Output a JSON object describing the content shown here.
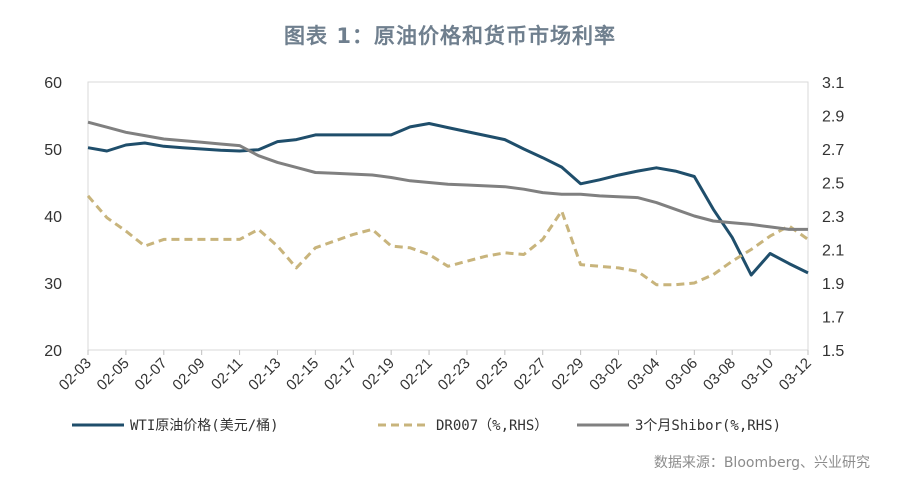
{
  "title": "图表 1：原油价格和货币市场利率",
  "source": "数据来源：Bloomberg、兴业研究",
  "chart_data": {
    "type": "line",
    "x": [
      "02-03",
      "02-04",
      "02-05",
      "02-06",
      "02-07",
      "02-08",
      "02-09",
      "02-10",
      "02-11",
      "02-12",
      "02-13",
      "02-14",
      "02-15",
      "02-16",
      "02-17",
      "02-18",
      "02-19",
      "02-20",
      "02-21",
      "02-22",
      "02-23",
      "02-24",
      "02-25",
      "02-26",
      "02-27",
      "02-28",
      "02-29",
      "03-01",
      "03-02",
      "03-03",
      "03-04",
      "03-05",
      "03-06",
      "03-07",
      "03-08",
      "03-09",
      "03-10",
      "03-11",
      "03-12"
    ],
    "x_tick_labels": [
      "02-03",
      "02-05",
      "02-07",
      "02-09",
      "02-11",
      "02-13",
      "02-15",
      "02-17",
      "02-19",
      "02-21",
      "02-23",
      "02-25",
      "02-27",
      "02-29",
      "03-02",
      "03-04",
      "03-06",
      "03-08",
      "03-10",
      "03-12"
    ],
    "y_left": {
      "ylim": [
        20,
        60
      ],
      "ticks": [
        "20",
        "30",
        "40",
        "50",
        "60"
      ]
    },
    "y_right": {
      "ylim": [
        1.5,
        3.1
      ],
      "ticks": [
        "1.5",
        "1.7",
        "1.9",
        "2.1",
        "2.3",
        "2.5",
        "2.7",
        "2.9",
        "3.1"
      ]
    },
    "series": [
      {
        "name": "WTI原油价格(美元/桶)",
        "axis": "left",
        "color": "#1f4e6b",
        "dash": false,
        "values": [
          50.2,
          49.7,
          50.6,
          50.9,
          50.4,
          50.2,
          50.0,
          49.8,
          49.7,
          49.9,
          51.1,
          51.4,
          52.1,
          52.1,
          52.1,
          52.1,
          52.1,
          53.3,
          53.8,
          53.2,
          52.6,
          52.0,
          51.4,
          50.0,
          48.7,
          47.3,
          44.8,
          45.4,
          46.1,
          46.7,
          47.2,
          46.7,
          45.9,
          41.0,
          36.8,
          31.2,
          34.4,
          32.9,
          31.5
        ]
      },
      {
        "name": "DR007（%,RHS）",
        "axis": "right",
        "color": "#c8b47c",
        "dash": true,
        "values": [
          2.42,
          2.29,
          2.21,
          2.12,
          2.16,
          2.16,
          2.16,
          2.16,
          2.16,
          2.22,
          2.12,
          1.99,
          2.11,
          2.15,
          2.19,
          2.22,
          2.12,
          2.11,
          2.07,
          2.0,
          2.03,
          2.06,
          2.08,
          2.07,
          2.16,
          2.33,
          2.01,
          2.0,
          1.99,
          1.97,
          1.89,
          1.89,
          1.9,
          1.95,
          2.03,
          2.1,
          2.18,
          2.24,
          2.16
        ]
      },
      {
        "name": "3个月Shibor(%,RHS)",
        "axis": "right",
        "color": "#808080",
        "dash": false,
        "values": [
          2.86,
          2.83,
          2.8,
          2.78,
          2.76,
          2.75,
          2.74,
          2.73,
          2.72,
          2.66,
          2.62,
          2.59,
          2.56,
          2.555,
          2.55,
          2.545,
          2.53,
          2.51,
          2.5,
          2.49,
          2.485,
          2.48,
          2.475,
          2.46,
          2.44,
          2.43,
          2.43,
          2.42,
          2.415,
          2.41,
          2.38,
          2.34,
          2.3,
          2.27,
          2.26,
          2.25,
          2.235,
          2.22,
          2.22
        ]
      }
    ],
    "legend": [
      {
        "label": "WTI原油价格(美元/桶)"
      },
      {
        "label": "DR007（%,RHS）"
      },
      {
        "label": "3个月Shibor(%,RHS)"
      }
    ]
  }
}
